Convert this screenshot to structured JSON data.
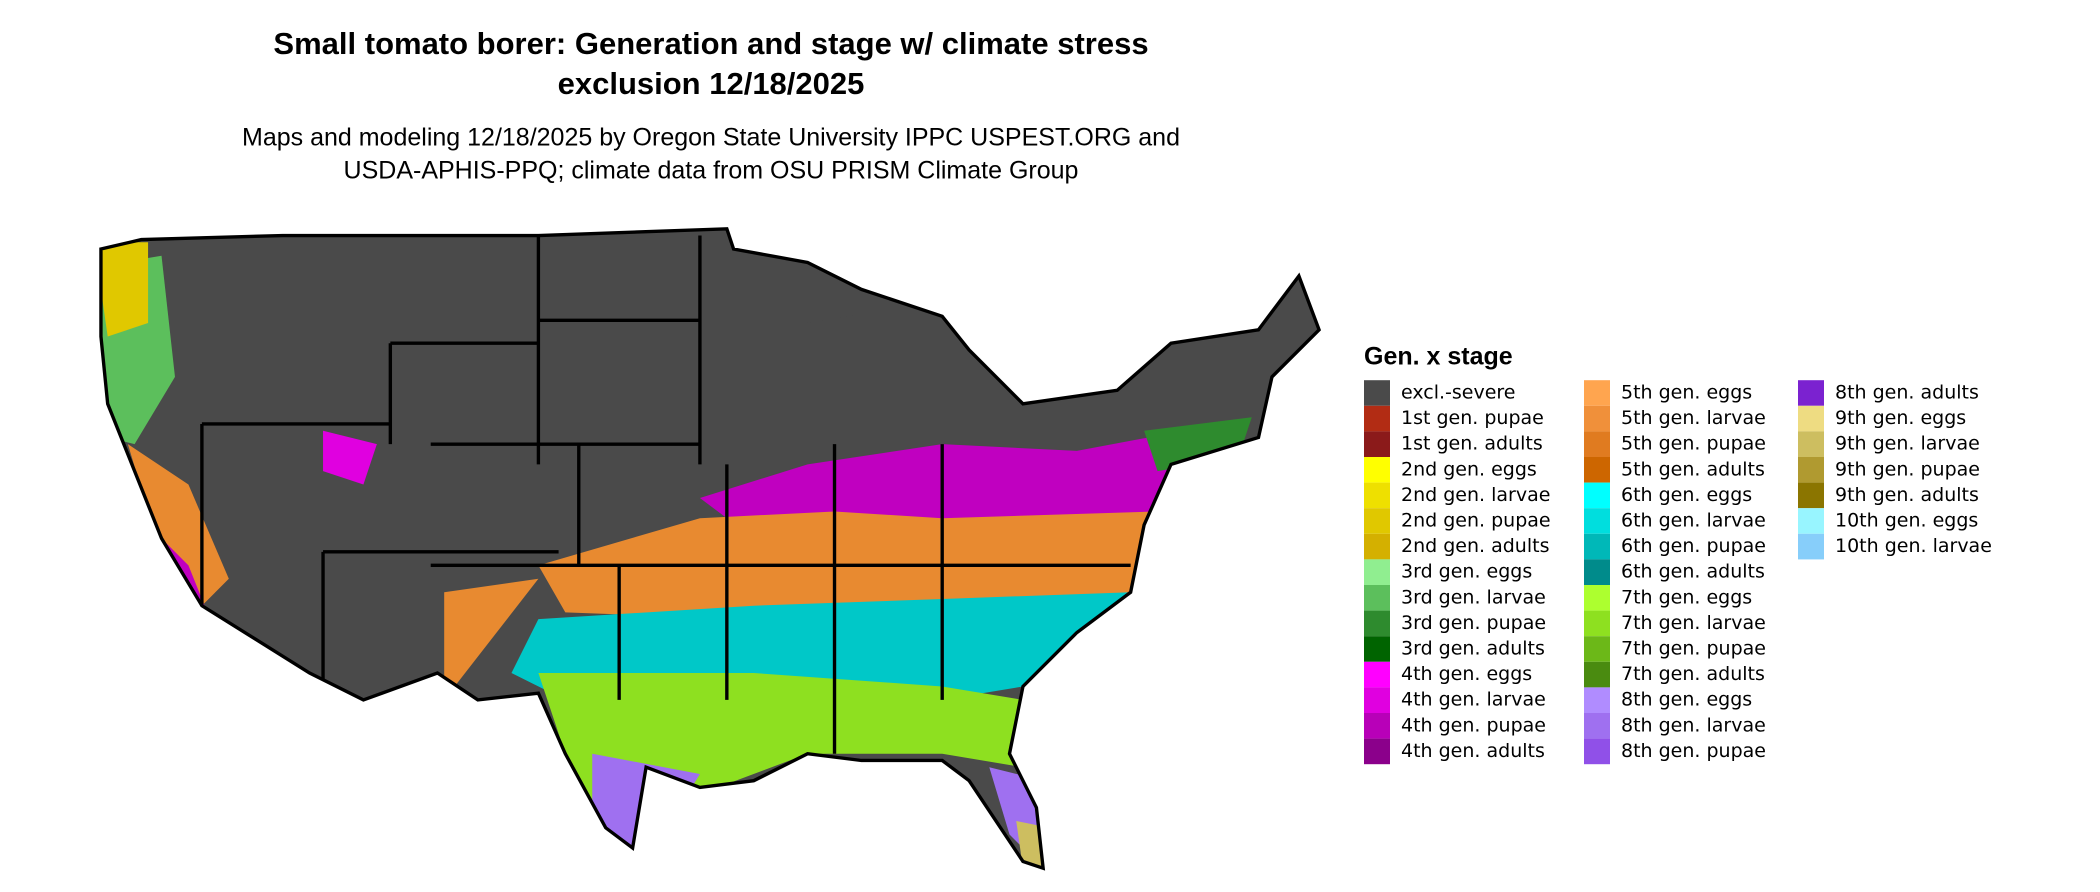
{
  "title": [
    "Small tomato borer: Generation and stage w/ climate stress",
    "exclusion 12/18/2025"
  ],
  "subtitle": [
    "Maps and modeling 12/18/2025 by Oregon State University IPPC USPEST.ORG and",
    "USDA-APHIS-PPQ; climate data from OSU PRISM Climate Group"
  ],
  "legend": {
    "title": "Gen. x stage",
    "items": [
      {
        "label": "excl.-severe",
        "color": "#4a4a4a"
      },
      {
        "label": "1st gen. pupae",
        "color": "#b22c14"
      },
      {
        "label": "1st gen. adults",
        "color": "#8b1a1a"
      },
      {
        "label": "2nd gen. eggs",
        "color": "#ffff00"
      },
      {
        "label": "2nd gen. larvae",
        "color": "#eee000"
      },
      {
        "label": "2nd gen. pupae",
        "color": "#e0c800"
      },
      {
        "label": "2nd gen. adults",
        "color": "#d4b000"
      },
      {
        "label": "3rd gen. eggs",
        "color": "#90ee90"
      },
      {
        "label": "3rd gen. larvae",
        "color": "#5cbf5c"
      },
      {
        "label": "3rd gen. pupae",
        "color": "#2e8b2e"
      },
      {
        "label": "3rd gen. adults",
        "color": "#006400"
      },
      {
        "label": "4th gen. eggs",
        "color": "#ff00ff"
      },
      {
        "label": "4th gen. larvae",
        "color": "#e000e0"
      },
      {
        "label": "4th gen. pupae",
        "color": "#b800b8"
      },
      {
        "label": "4th gen. adults",
        "color": "#8b008b"
      },
      {
        "label": "5th gen. eggs",
        "color": "#ffa54f"
      },
      {
        "label": "5th gen. larvae",
        "color": "#f0903a"
      },
      {
        "label": "5th gen. pupae",
        "color": "#e07b20"
      },
      {
        "label": "5th gen. adults",
        "color": "#cd6600"
      },
      {
        "label": "6th gen. eggs",
        "color": "#00ffff"
      },
      {
        "label": "6th gen. larvae",
        "color": "#00dede"
      },
      {
        "label": "6th gen. pupae",
        "color": "#00b8b8"
      },
      {
        "label": "6th gen. adults",
        "color": "#008b8b"
      },
      {
        "label": "7th gen. eggs",
        "color": "#adff2f"
      },
      {
        "label": "7th gen. larvae",
        "color": "#8ee020"
      },
      {
        "label": "7th gen. pupae",
        "color": "#6cb818"
      },
      {
        "label": "7th gen. adults",
        "color": "#4a8b10"
      },
      {
        "label": "8th gen. eggs",
        "color": "#b08cff"
      },
      {
        "label": "8th gen. larvae",
        "color": "#9f70f0"
      },
      {
        "label": "8th gen. pupae",
        "color": "#9050e8"
      },
      {
        "label": "8th gen. adults",
        "color": "#7b22d0"
      },
      {
        "label": "9th gen. eggs",
        "color": "#eedc82"
      },
      {
        "label": "9th gen. larvae",
        "color": "#cdbe60"
      },
      {
        "label": "9th gen. pupae",
        "color": "#b09a30"
      },
      {
        "label": "9th gen. adults",
        "color": "#8b7500"
      },
      {
        "label": "10th gen. eggs",
        "color": "#98f5ff"
      },
      {
        "label": "10th gen. larvae",
        "color": "#87cefa"
      }
    ]
  }
}
